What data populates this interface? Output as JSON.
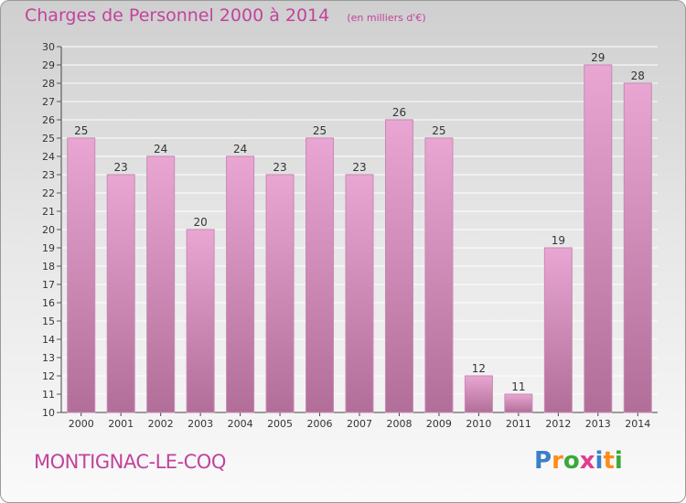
{
  "header": {
    "title": "Charges de Personnel 2000 à 2014",
    "subtitle": "(en milliers d'€)"
  },
  "footer": {
    "commune": "MONTIGNAC-LE-COQ",
    "logo": {
      "text": "Proxiti",
      "letters": [
        {
          "ch": "P",
          "color": "#3a7fc9"
        },
        {
          "ch": "r",
          "color": "#ff8c1a"
        },
        {
          "ch": "o",
          "color": "#3aa83a"
        },
        {
          "ch": "x",
          "color": "#e23b8f"
        },
        {
          "ch": "i",
          "color": "#3a7fc9"
        },
        {
          "ch": "t",
          "color": "#ff8c1a"
        },
        {
          "ch": "i",
          "color": "#3aa83a"
        }
      ]
    }
  },
  "colors": {
    "title": "#c2439b",
    "bar_top": "#e9a6d3",
    "bar_bottom": "#b06e98",
    "bar_edge": "#c98ab4"
  },
  "chart_data": {
    "type": "bar",
    "title": "Charges de Personnel 2000 à 2014",
    "subtitle": "(en milliers d'€)",
    "categories": [
      "2000",
      "2001",
      "2002",
      "2003",
      "2004",
      "2005",
      "2006",
      "2007",
      "2008",
      "2009",
      "2010",
      "2011",
      "2012",
      "2013",
      "2014"
    ],
    "values": [
      25,
      23,
      24,
      20,
      24,
      23,
      25,
      23,
      26,
      25,
      12,
      11,
      19,
      29,
      28
    ],
    "ylim": [
      10,
      30
    ],
    "yticks": [
      10,
      11,
      12,
      13,
      14,
      15,
      16,
      17,
      18,
      19,
      20,
      21,
      22,
      23,
      24,
      25,
      26,
      27,
      28,
      29,
      30
    ],
    "grid": true,
    "data_labels": true,
    "legend": "none"
  }
}
